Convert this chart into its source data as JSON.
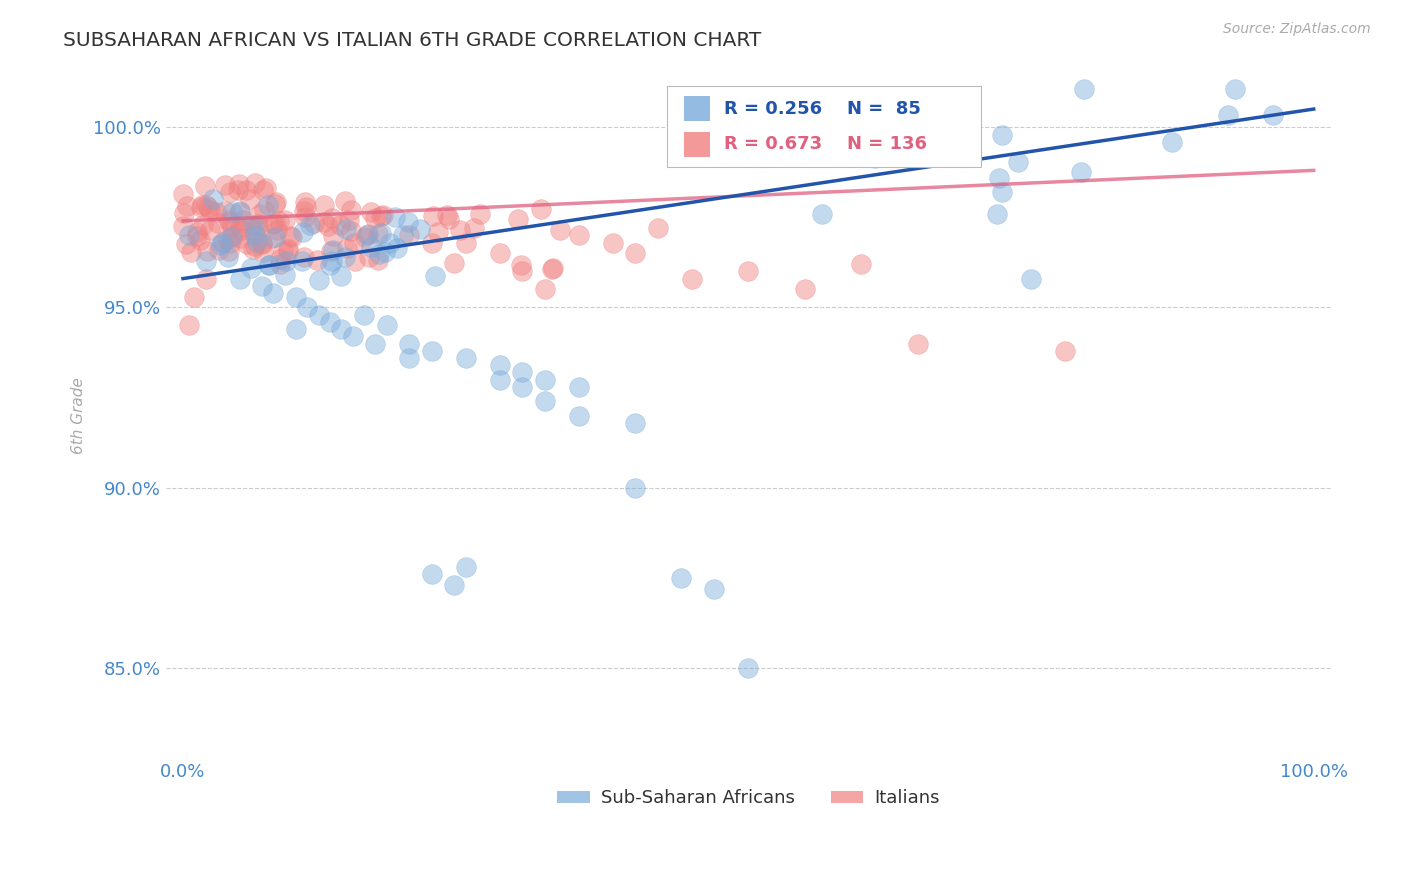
{
  "title": "SUBSAHARAN AFRICAN VS ITALIAN 6TH GRADE CORRELATION CHART",
  "source_text": "Source: ZipAtlas.com",
  "ylabel": "6th Grade",
  "xlim": [
    0.0,
    1.0
  ],
  "ylim_min": 0.825,
  "ylim_max": 1.015,
  "yticks": [
    0.85,
    0.9,
    0.95,
    1.0
  ],
  "ytick_labels": [
    "85.0%",
    "90.0%",
    "95.0%",
    "100.0%"
  ],
  "xtick_labels": [
    "0.0%",
    "100.0%"
  ],
  "legend_r_blue": "R = 0.256",
  "legend_n_blue": "N =  85",
  "legend_r_pink": "R = 0.673",
  "legend_n_pink": "N = 136",
  "legend_label_blue": "Sub-Saharan Africans",
  "legend_label_pink": "Italians",
  "blue_color": "#7aabdb",
  "pink_color": "#f08080",
  "blue_line_color": "#2255aa",
  "pink_line_color": "#e06080",
  "title_color": "#333333",
  "axis_label_color": "#4488cc",
  "grid_color": "#aaaaaa",
  "background_color": "#ffffff",
  "blue_line_x0": 0.0,
  "blue_line_y0": 0.958,
  "blue_line_x1": 1.0,
  "blue_line_y1": 1.005,
  "pink_line_x0": 0.0,
  "pink_line_y0": 0.974,
  "pink_line_x1": 1.0,
  "pink_line_y1": 0.988
}
